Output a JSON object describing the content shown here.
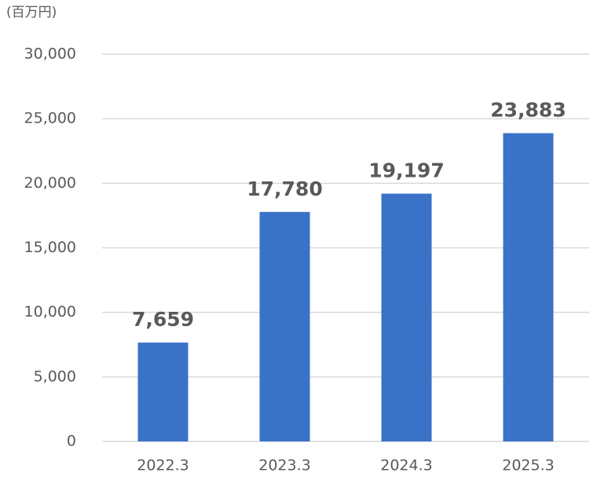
{
  "chart_data": {
    "type": "bar",
    "ylabel": "(百万円)",
    "categories": [
      "2022.3",
      "2023.3",
      "2024.3",
      "2025.3"
    ],
    "values": [
      7659,
      17780,
      19197,
      23883
    ],
    "value_labels": [
      "7,659",
      "17,780",
      "19,197",
      "23,883"
    ],
    "color": "#3a72c8",
    "ylim": [
      0,
      30000
    ],
    "yticks": [
      0,
      {
        "value": 5000,
        "label": "5,000"
      },
      {
        "value": 10000,
        "label": "10,000"
      },
      {
        "value": 15000,
        "label": "15,000"
      },
      {
        "value": 20000,
        "label": "20,000"
      },
      {
        "value": 25000,
        "label": "25,000"
      },
      {
        "value": 30000,
        "label": "30,000"
      }
    ],
    "grid": true
  }
}
